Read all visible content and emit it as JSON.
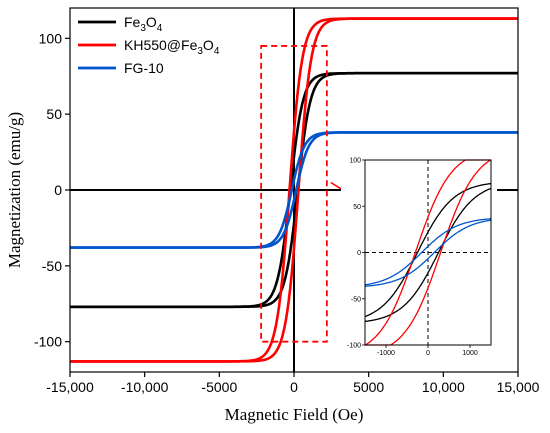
{
  "chart_data": {
    "type": "line",
    "xlabel": "Magnetic Field (Oe)",
    "ylabel": "Magnetization (emu/g)",
    "xlim": [
      -15000,
      15000
    ],
    "ylim": [
      -120,
      120
    ],
    "xticks": [
      "-15,000",
      "-10,000",
      "-5000",
      "0",
      "5000",
      "10,000",
      "15,000"
    ],
    "xtick_values": [
      -15000,
      -10000,
      -5000,
      0,
      5000,
      10000,
      15000
    ],
    "yticks": [
      "-100",
      "-50",
      "0",
      "50",
      "100"
    ],
    "ytick_values": [
      -100,
      -50,
      0,
      50,
      100
    ],
    "legend_position": "top-left",
    "series": [
      {
        "name": "Fe3O4",
        "legend_base": "Fe",
        "legend_sub1": "3",
        "legend_mid": "O",
        "legend_sub2": "4",
        "color": "#000000",
        "ms": 77,
        "hc": 250,
        "H0": 850
      },
      {
        "name": "KH550@Fe3O4",
        "legend_base": "KH550@Fe",
        "legend_sub1": "3",
        "legend_mid": "O",
        "legend_sub2": "4",
        "color": "#ff0000",
        "ms": 113,
        "hc": 300,
        "H0": 850
      },
      {
        "name": "FG-10",
        "legend_base": "FG-10",
        "color": "#0055cc",
        "ms": 38,
        "hc": 150,
        "H0": 850
      }
    ],
    "inset": {
      "xlim": [
        -1500,
        1500
      ],
      "ylim": [
        -100,
        100
      ],
      "xticks": [
        "-1000",
        "0",
        "1000"
      ],
      "xtick_values": [
        -1000,
        0,
        1000
      ],
      "yticks": [
        "-100",
        "-50",
        "0",
        "50",
        "100"
      ],
      "ytick_values": [
        -100,
        -50,
        0,
        50,
        100
      ]
    },
    "zoom_box_xlim": [
      -2200,
      2200
    ],
    "zoom_box_ylim": [
      -100,
      95
    ],
    "colors": {
      "zoom_box": "#ff0000",
      "axes": "#000000",
      "zero_line": "#000000"
    }
  }
}
